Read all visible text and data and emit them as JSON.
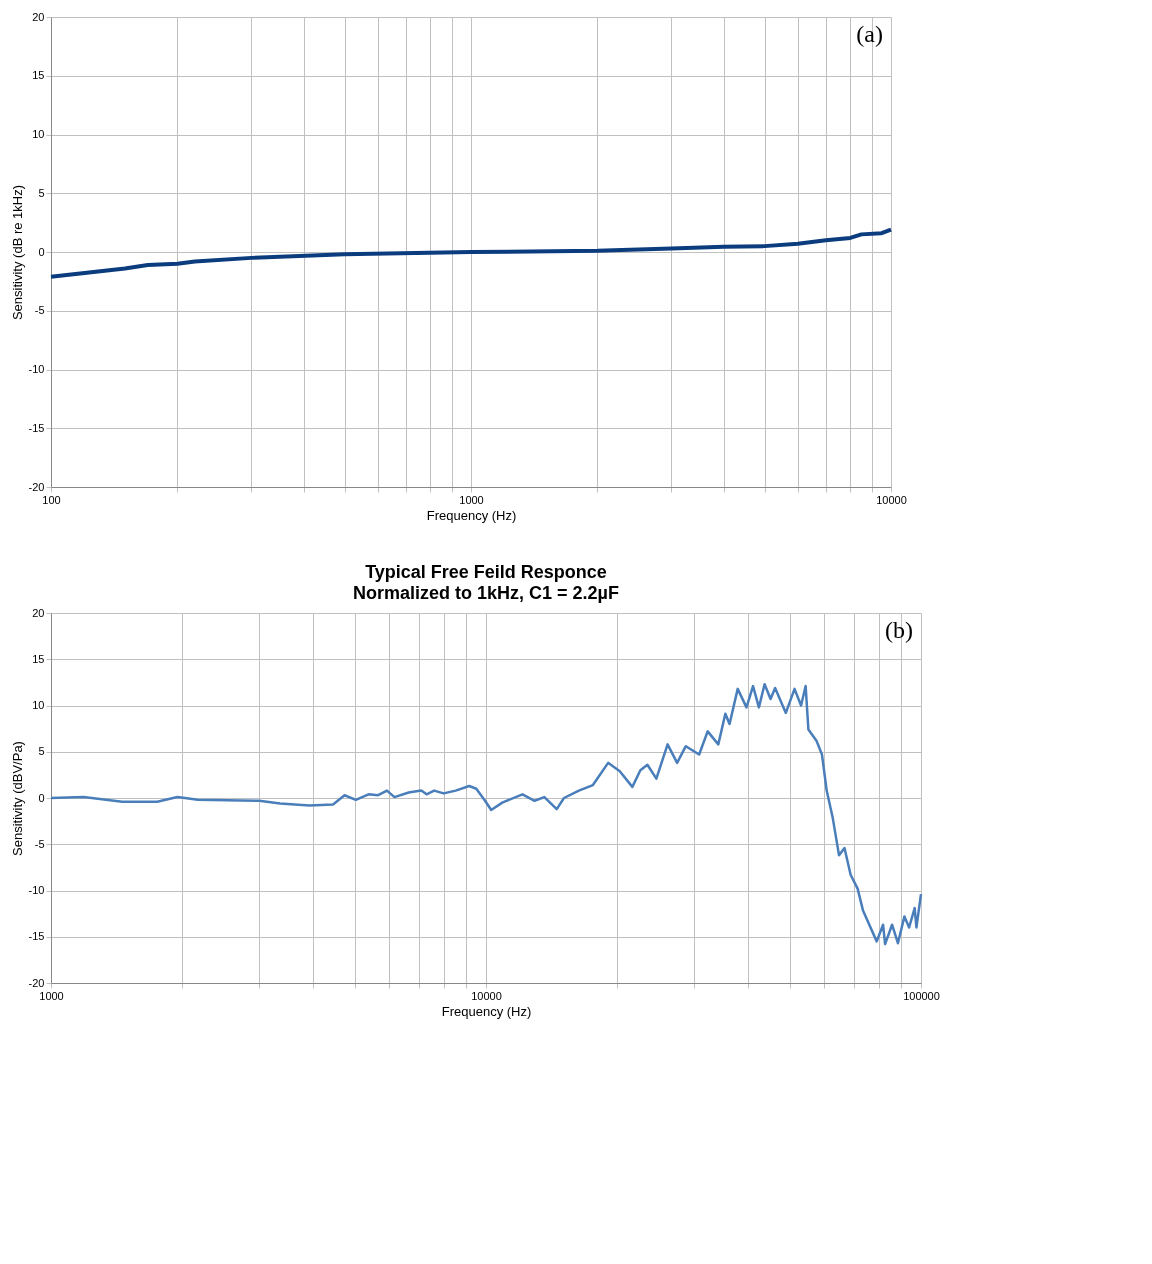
{
  "chart_data": [
    {
      "type": "line",
      "xlabel": "Frequency (Hz)",
      "ylabel": "Sensitivity (dB re 1kHz)",
      "annotations": [
        "(a)"
      ],
      "grid": true,
      "x": [
        100,
        150,
        170,
        200,
        220,
        300,
        500,
        1000,
        2000,
        3000,
        4000,
        5000,
        6000,
        7000,
        8000,
        8500,
        9500,
        10000
      ],
      "series": [
        {
          "color": "#0b3c7d",
          "values": [
            -2.1,
            -1.4,
            -1.1,
            -1.0,
            -0.8,
            -0.5,
            -0.2,
            0,
            0.1,
            0.3,
            0.45,
            0.5,
            0.7,
            1.0,
            1.2,
            1.5,
            1.6,
            1.9
          ]
        }
      ],
      "log": "x",
      "xlim": [
        100,
        10000
      ],
      "ylim": [
        -20,
        20
      ],
      "xticks": [
        100,
        {
          "value": 200,
          "label": null
        },
        {
          "value": 300,
          "label": null
        },
        {
          "value": 400,
          "label": null
        },
        {
          "value": 500,
          "label": null
        },
        {
          "value": 600,
          "label": null
        },
        {
          "value": 700,
          "label": null
        },
        {
          "value": 800,
          "label": null
        },
        {
          "value": 900,
          "label": null
        },
        1000,
        {
          "value": 2000,
          "label": null
        },
        {
          "value": 3000,
          "label": null
        },
        {
          "value": 4000,
          "label": null
        },
        {
          "value": 5000,
          "label": null
        },
        {
          "value": 6000,
          "label": null
        },
        {
          "value": 7000,
          "label": null
        },
        {
          "value": 8000,
          "label": null
        },
        {
          "value": 9000,
          "label": null
        },
        10000
      ],
      "yticks": [
        -20,
        -15,
        -10,
        -5,
        0,
        5,
        10,
        15,
        20
      ]
    },
    {
      "type": "line",
      "title": "Typical Free Feild Responce",
      "subtitle": "Normalized to 1kHz, C1 = 2.2µF",
      "xlabel": "Frequency (Hz)",
      "ylabel": "Sensitivity (dBV/Pa)",
      "annotations": [
        "(b)"
      ],
      "grid": true,
      "x": [
        1000,
        1188,
        1458,
        1755,
        1953,
        2174,
        3012,
        3364,
        3925,
        4450,
        4730,
        5020,
        5370,
        5650,
        5920,
        6160,
        6640,
        7100,
        7300,
        7600,
        7990,
        8520,
        9150,
        9500,
        9950,
        10280,
        10900,
        12130,
        12930,
        13620,
        14540,
        15110,
        16350,
        17610,
        19090,
        20300,
        21700,
        22640,
        23500,
        24640,
        26150,
        27500,
        28800,
        30900,
        32330,
        34200,
        35500,
        36300,
        37900,
        39700,
        41100,
        42400,
        43700,
        45100,
        46200,
        48900,
        51200,
        53000,
        54300,
        55100,
        57500,
        59200,
        60700,
        62700,
        64800,
        66700,
        68900,
        71500,
        73600,
        79100,
        81800,
        82700,
        85800,
        88500,
        91600,
        93900,
        96700,
        97600,
        100000
      ],
      "series": [
        {
          "color": "#4a7ebb",
          "values": [
            0,
            0.1,
            -0.4,
            -0.4,
            0.1,
            -0.2,
            -0.3,
            -0.6,
            -0.8,
            -0.7,
            0.3,
            -0.2,
            0.4,
            0.3,
            0.8,
            0.1,
            0.6,
            0.8,
            0.4,
            0.8,
            0.5,
            0.8,
            1.3,
            1.0,
            -0.3,
            -1.3,
            -0.5,
            0.4,
            -0.3,
            0.1,
            -1.2,
            0.0,
            0.8,
            1.4,
            3.8,
            2.9,
            1.2,
            3.0,
            3.6,
            2.1,
            5.8,
            3.8,
            5.6,
            4.7,
            7.2,
            5.8,
            9.1,
            8.0,
            11.8,
            9.8,
            12.1,
            9.8,
            12.3,
            10.7,
            11.9,
            9.2,
            11.8,
            10.0,
            12.1,
            7.4,
            6.2,
            4.7,
            0.8,
            -2.2,
            -6.2,
            -5.4,
            -8.3,
            -9.8,
            -12.2,
            -15.5,
            -13.7,
            -15.8,
            -13.7,
            -15.7,
            -12.8,
            -14.0,
            -11.9,
            -14.0,
            -10.4
          ]
        }
      ],
      "log": "x",
      "xlim": [
        1000,
        100000
      ],
      "ylim": [
        -20,
        20
      ],
      "xticks": [
        1000,
        {
          "value": 2000,
          "label": null
        },
        {
          "value": 3000,
          "label": null
        },
        {
          "value": 4000,
          "label": null
        },
        {
          "value": 5000,
          "label": null
        },
        {
          "value": 6000,
          "label": null
        },
        {
          "value": 7000,
          "label": null
        },
        {
          "value": 8000,
          "label": null
        },
        {
          "value": 9000,
          "label": null
        },
        10000,
        {
          "value": 20000,
          "label": null
        },
        {
          "value": 30000,
          "label": null
        },
        {
          "value": 40000,
          "label": null
        },
        {
          "value": 50000,
          "label": null
        },
        {
          "value": 60000,
          "label": null
        },
        {
          "value": 70000,
          "label": null
        },
        {
          "value": 80000,
          "label": null
        },
        {
          "value": 90000,
          "label": null
        },
        100000
      ],
      "yticks": [
        -20,
        -15,
        -10,
        -5,
        0,
        5,
        10,
        15,
        20
      ]
    }
  ]
}
